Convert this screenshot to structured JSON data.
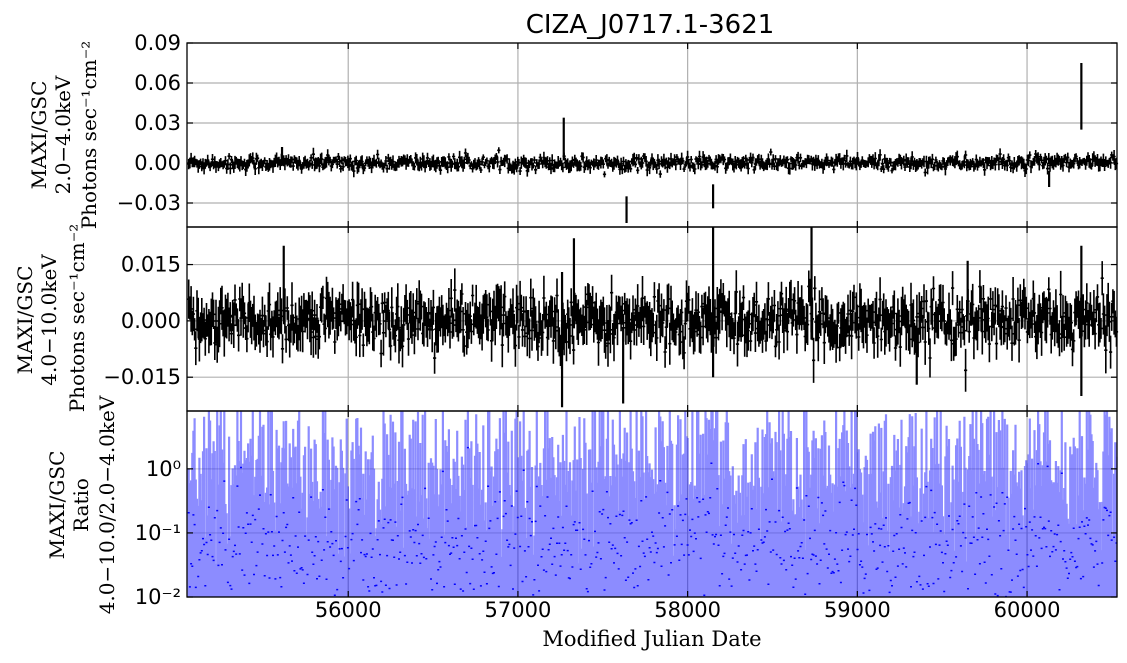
{
  "chart_data": {
    "title": "CIZA_J0717.1-3621",
    "xlabel": "Modified Julian Date",
    "xlim": [
      55050,
      60530
    ],
    "xticks": [
      56000,
      57000,
      58000,
      59000,
      60000
    ],
    "xtick_labels": [
      "56000",
      "57000",
      "58000",
      "59000",
      "60000"
    ],
    "grid": true,
    "panels": [
      {
        "type": "errorbar",
        "ylabel_lines": [
          "MAXI/GSC",
          "2.0−4.0keV",
          "Photons sec⁻¹cm⁻²"
        ],
        "ylim": [
          -0.048,
          0.09
        ],
        "yticks": [
          -0.03,
          0.0,
          0.03,
          0.06,
          0.09
        ],
        "ytick_labels": [
          "−0.03",
          "0.00",
          "0.03",
          "0.06",
          "0.09"
        ],
        "color": "#000000",
        "series": {
          "x_start": 55060,
          "x_step": 7,
          "noise": 0.0025,
          "err": 0.0035,
          "spikes": [
            {
              "x": 57270,
              "y": 0.018,
              "err": 0.016
            },
            {
              "x": 57640,
              "y": -0.035,
              "err": 0.01
            },
            {
              "x": 58150,
              "y": -0.025,
              "err": 0.009
            },
            {
              "x": 60320,
              "y": 0.05,
              "err": 0.025
            },
            {
              "x": 60130,
              "y": -0.012,
              "err": 0.006
            },
            {
              "x": 55610,
              "y": 0.007,
              "err": 0.005
            }
          ]
        }
      },
      {
        "type": "errorbar",
        "ylabel_lines": [
          "MAXI/GSC",
          "4.0−10.0keV",
          "Photons sec⁻¹cm⁻²"
        ],
        "ylim": [
          -0.024,
          0.025
        ],
        "yticks": [
          -0.015,
          0.0,
          0.015
        ],
        "ytick_labels": [
          "−0.015",
          "0.000",
          "0.015"
        ],
        "color": "#000000",
        "series": {
          "x_start": 55060,
          "x_step": 7,
          "noise": 0.0035,
          "err": 0.0045,
          "spikes": [
            {
              "x": 55620,
              "y": 0.01,
              "err": 0.01
            },
            {
              "x": 57260,
              "y": -0.005,
              "err": 0.018
            },
            {
              "x": 57330,
              "y": 0.01,
              "err": 0.012
            },
            {
              "x": 57620,
              "y": -0.012,
              "err": 0.01
            },
            {
              "x": 58150,
              "y": 0.005,
              "err": 0.02
            },
            {
              "x": 58730,
              "y": 0.01,
              "err": 0.015
            },
            {
              "x": 60320,
              "y": 0.0,
              "err": 0.02
            },
            {
              "x": 59650,
              "y": 0.008,
              "err": 0.008
            },
            {
              "x": 59350,
              "y": -0.01,
              "err": 0.007
            }
          ]
        }
      },
      {
        "type": "errorbar",
        "scale": "log",
        "ylabel_lines": [
          "MAXI/GSC",
          "Ratio",
          "4.0−10.0/2.0−4.0keV"
        ],
        "ylim": [
          0.01,
          8
        ],
        "yticks": [
          0.01,
          0.1,
          1.0
        ],
        "ytick_labels": [
          "10⁻²",
          "10⁻¹",
          "10⁰"
        ],
        "color": "#0000ff"
      }
    ]
  }
}
